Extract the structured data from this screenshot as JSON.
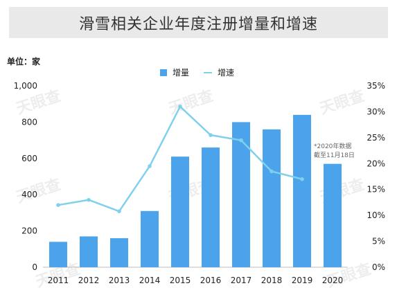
{
  "header": {
    "title": "滑雪相关企业年度注册增量和增速"
  },
  "unit_label": "单位：家",
  "watermark": "天眼查",
  "colors": {
    "bar": "#4aa3eb",
    "line": "#7fd0ec",
    "title_bg": "#e9e9e9"
  },
  "chart_data": {
    "type": "bar",
    "title": "滑雪相关企业年度注册增量和增速",
    "categories": [
      "2011",
      "2012",
      "2013",
      "2014",
      "2015",
      "2016",
      "2017",
      "2018",
      "2019",
      "2020"
    ],
    "series": [
      {
        "name": "增量",
        "type": "bar",
        "axis": "left",
        "values": [
          140,
          170,
          160,
          310,
          610,
          660,
          800,
          760,
          840,
          570
        ]
      },
      {
        "name": "增速",
        "type": "line",
        "axis": "right",
        "values": [
          12.0,
          13.0,
          10.8,
          19.5,
          31.0,
          25.5,
          24.5,
          18.5,
          17.0,
          null
        ]
      }
    ],
    "y_left": {
      "ylim": [
        0,
        1000
      ],
      "ticks": [
        "0",
        "200",
        "400",
        "600",
        "800",
        "1,000"
      ],
      "tick_values": [
        0,
        200,
        400,
        600,
        800,
        1000
      ]
    },
    "y_right": {
      "ylim": [
        0,
        35
      ],
      "ticks": [
        "0%",
        "5%",
        "10%",
        "15%",
        "20%",
        "25%",
        "30%",
        "35%"
      ],
      "tick_values": [
        0,
        5,
        10,
        15,
        20,
        25,
        30,
        35
      ]
    },
    "legend_placement": "top-center",
    "annotation": [
      "*2020年数据",
      "截至11月18日"
    ]
  }
}
